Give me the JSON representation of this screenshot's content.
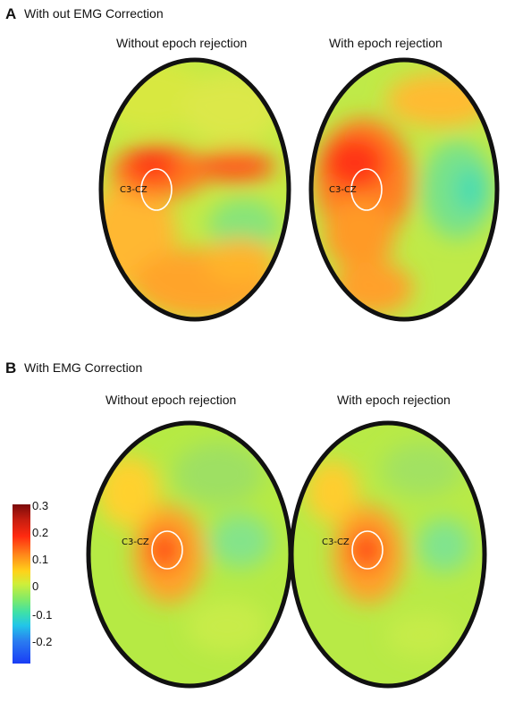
{
  "panel_a": {
    "letter": "A",
    "title": "With out EMG Correction",
    "left_caption": "Without epoch rejection",
    "right_caption": "With epoch rejection",
    "roi_label": "C3-CZ"
  },
  "panel_b": {
    "letter": "B",
    "title": "With EMG Correction",
    "left_caption": "Without epoch rejection",
    "right_caption": "With epoch rejection",
    "roi_label": "C3-CZ"
  },
  "colorbar": {
    "ticks": [
      "0.3",
      "0.2",
      "0.1",
      "0",
      "-0.1",
      "-0.2"
    ],
    "tick_values": [
      0.3,
      0.2,
      0.1,
      0,
      -0.1,
      -0.2
    ],
    "range": [
      -0.25,
      0.3
    ],
    "colormap": "jet"
  },
  "colors": {
    "outline": "#111111",
    "roi_circle": "#ffffff",
    "background_field": "#b8ea3c"
  }
}
